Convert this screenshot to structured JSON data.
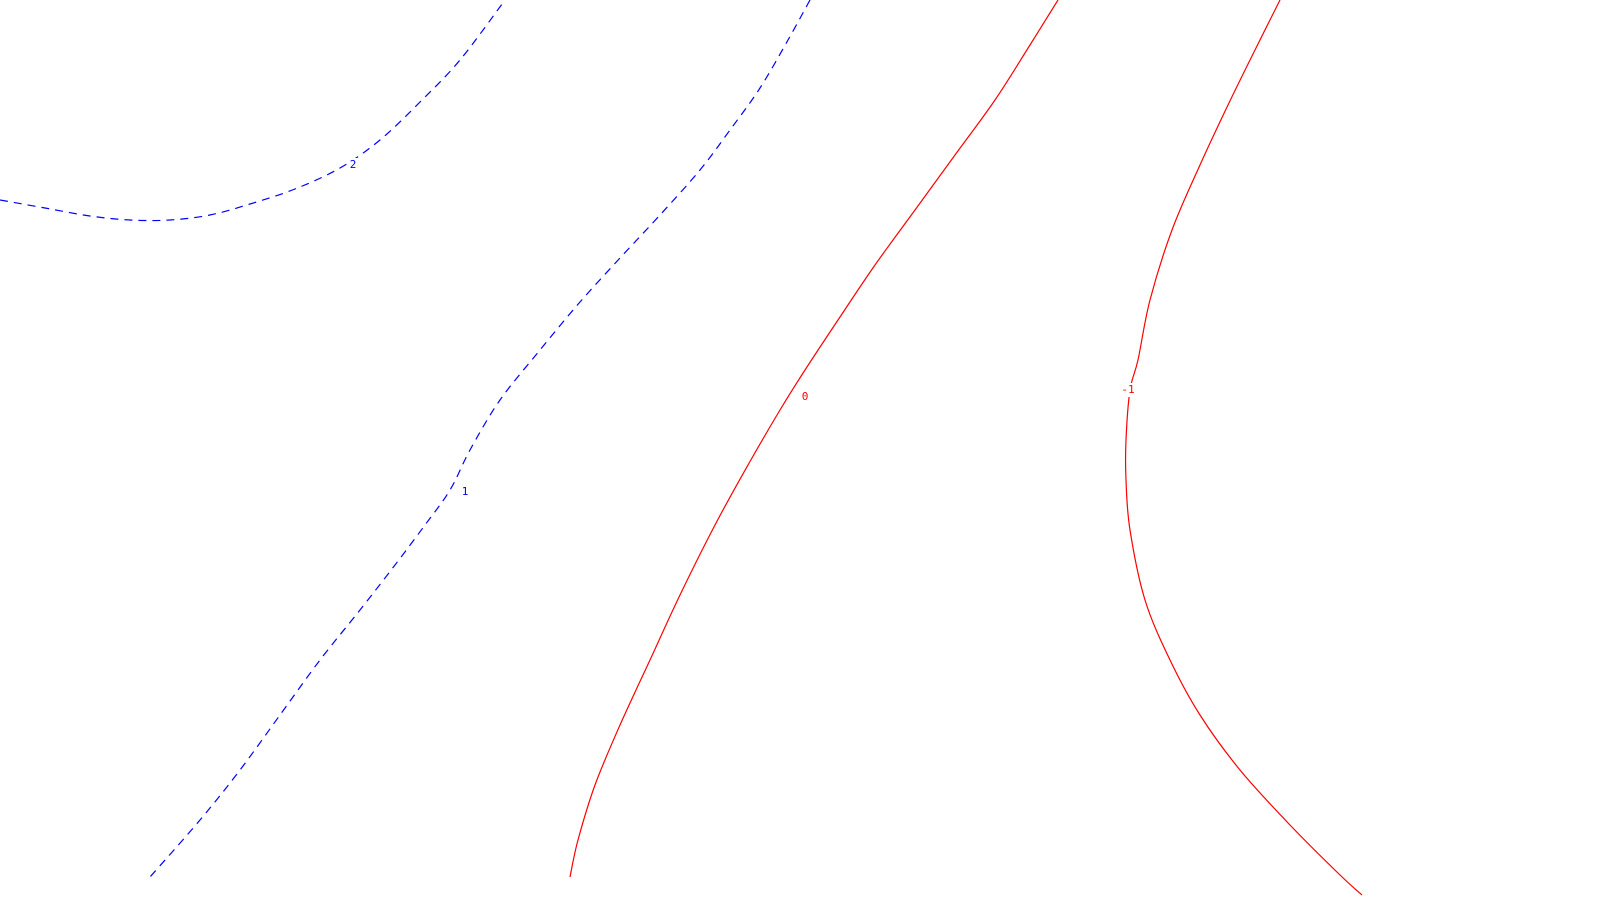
{
  "chart_data": {
    "type": "contour",
    "title": "",
    "xlabel": "",
    "ylabel": "",
    "grid": false,
    "legend": "none",
    "levels": [
      {
        "level": 2,
        "label": "2",
        "color": "#0000ff",
        "linestyle": "dashed",
        "points": [
          [
            0,
            200
          ],
          [
            45,
            208
          ],
          [
            90,
            216
          ],
          [
            130,
            220
          ],
          [
            170,
            220
          ],
          [
            210,
            215
          ],
          [
            250,
            204
          ],
          [
            295,
            189
          ],
          [
            340,
            168
          ],
          [
            380,
            140
          ],
          [
            420,
            102
          ],
          [
            460,
            60
          ],
          [
            505,
            0
          ]
        ]
      },
      {
        "level": 1,
        "label": "1",
        "color": "#0000ff",
        "linestyle": "dashed",
        "points": [
          [
            810,
            0
          ],
          [
            788,
            40
          ],
          [
            760,
            88
          ],
          [
            730,
            130
          ],
          [
            700,
            170
          ],
          [
            660,
            215
          ],
          [
            620,
            258
          ],
          [
            580,
            302
          ],
          [
            540,
            350
          ],
          [
            500,
            400
          ],
          [
            470,
            450
          ],
          [
            450,
            490
          ],
          [
            425,
            525
          ],
          [
            395,
            565
          ],
          [
            360,
            610
          ],
          [
            320,
            660
          ],
          [
            280,
            715
          ],
          [
            240,
            770
          ],
          [
            200,
            820
          ],
          [
            150,
            877
          ]
        ]
      },
      {
        "level": 0,
        "label": "0",
        "color": "#ff0000",
        "linestyle": "solid",
        "points": [
          [
            1058,
            0
          ],
          [
            1030,
            45
          ],
          [
            995,
            100
          ],
          [
            955,
            155
          ],
          [
            915,
            210
          ],
          [
            875,
            265
          ],
          [
            838,
            320
          ],
          [
            805,
            370
          ],
          [
            780,
            410
          ],
          [
            748,
            465
          ],
          [
            715,
            525
          ],
          [
            680,
            595
          ],
          [
            650,
            660
          ],
          [
            620,
            725
          ],
          [
            595,
            785
          ],
          [
            578,
            840
          ],
          [
            570,
            877
          ]
        ]
      },
      {
        "level": -1,
        "label": "-1",
        "color": "#ff0000",
        "linestyle": "solid",
        "points": [
          [
            1280,
            0
          ],
          [
            1255,
            50
          ],
          [
            1228,
            105
          ],
          [
            1200,
            165
          ],
          [
            1172,
            230
          ],
          [
            1150,
            300
          ],
          [
            1138,
            360
          ],
          [
            1130,
            390
          ],
          [
            1126,
            440
          ],
          [
            1126,
            480
          ],
          [
            1130,
            530
          ],
          [
            1145,
            600
          ],
          [
            1170,
            660
          ],
          [
            1200,
            715
          ],
          [
            1240,
            770
          ],
          [
            1290,
            825
          ],
          [
            1340,
            875
          ],
          [
            1362,
            895
          ]
        ]
      }
    ],
    "labels": [
      {
        "text": "2",
        "level": 2,
        "color": "#0000ff"
      },
      {
        "text": "1",
        "level": 1,
        "color": "#0000ff"
      },
      {
        "text": "0",
        "level": 0,
        "color": "#ff0000"
      },
      {
        "text": "-1",
        "level": -1,
        "color": "#ff0000"
      }
    ]
  }
}
